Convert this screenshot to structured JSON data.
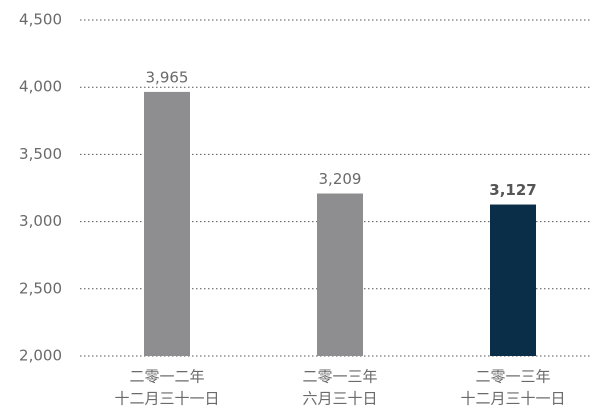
{
  "chart_data": {
    "type": "bar",
    "categories": [
      [
        "二零一二年",
        "十二月三十一日"
      ],
      [
        "二零一三年",
        "六月三十日"
      ],
      [
        "二零一三年",
        "十二月三十一日"
      ]
    ],
    "values": [
      3965,
      3209,
      3127
    ],
    "value_labels": [
      "3,965",
      "3,209",
      "3,127"
    ],
    "value_label_bold": [
      false,
      false,
      true
    ],
    "colors": [
      "#8e8e90",
      "#8e8e90",
      "#0b2e48"
    ],
    "ylim": [
      2000,
      4500
    ],
    "yticks": [
      {
        "value": 2000,
        "label": "2,000"
      },
      {
        "value": 2500,
        "label": "2,500"
      },
      {
        "value": 3000,
        "label": "3,000"
      },
      {
        "value": 3500,
        "label": "3,500"
      },
      {
        "value": 4000,
        "label": "4,000"
      },
      {
        "value": 4500,
        "label": "4,500"
      }
    ],
    "grid": true
  }
}
